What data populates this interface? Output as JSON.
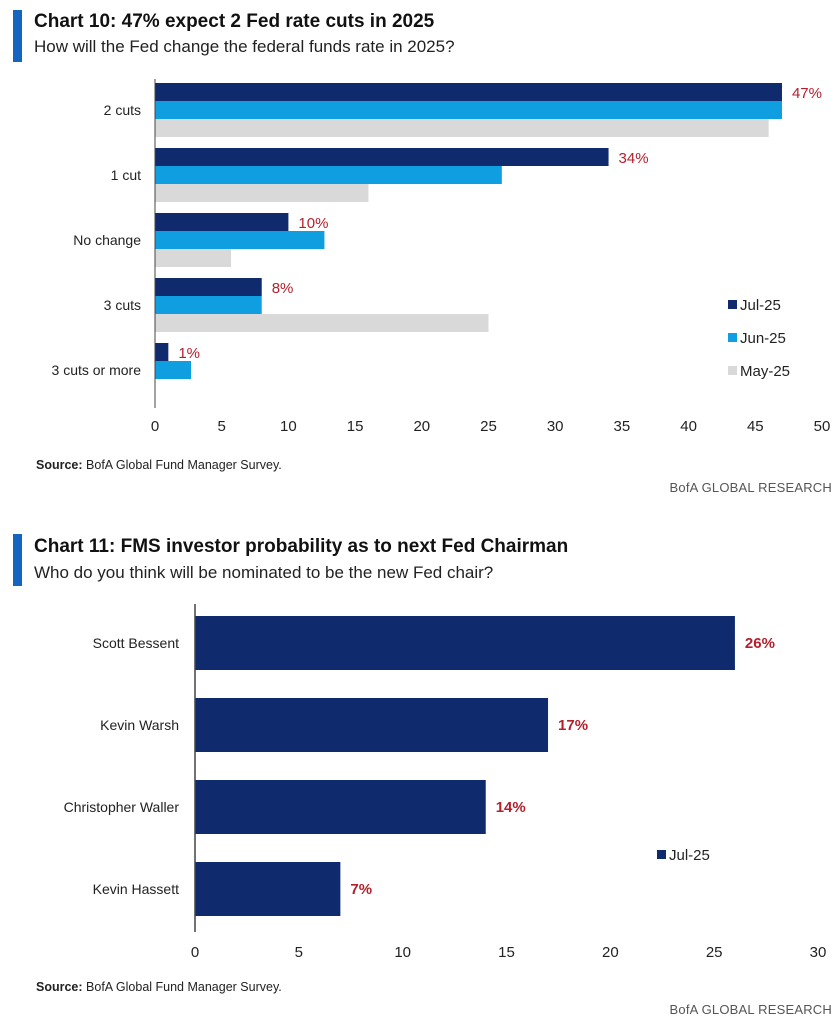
{
  "charts": [
    {
      "title": "Chart 10: 47% expect 2 Fed rate cuts in 2025",
      "subtitle": "How will the Fed change the federal funds rate in 2025?",
      "source_label": "Source:",
      "source_text": "BofA Global Fund Manager Survey.",
      "brand": "BofA GLOBAL RESEARCH"
    },
    {
      "title": "Chart 11: FMS investor probability as to next Fed Chairman",
      "subtitle": "Who do you think will be nominated to be the new Fed chair?",
      "source_label": "Source:",
      "source_text": "BofA Global Fund Manager Survey.",
      "brand": "BofA GLOBAL RESEARCH"
    }
  ],
  "colors": {
    "navy": "#102a6e",
    "blue": "#0f9fe0",
    "gray": "#d9d9d9",
    "label_red": "#b3202c",
    "accent": "#1565c0"
  },
  "chart_data": [
    {
      "type": "bar",
      "orientation": "horizontal",
      "title": "Chart 10: 47% expect 2 Fed rate cuts in 2025",
      "subtitle": "How will the Fed change the federal funds rate in 2025?",
      "categories": [
        "2 cuts",
        "1 cut",
        "No change",
        "3 cuts",
        "3 cuts or more"
      ],
      "series": [
        {
          "name": "Jul-25",
          "color": "#102a6e",
          "values": [
            47,
            34,
            10,
            8,
            1
          ]
        },
        {
          "name": "Jun-25",
          "color": "#0f9fe0",
          "values": [
            47,
            26,
            12.7,
            8,
            2.7
          ]
        },
        {
          "name": "May-25",
          "color": "#d9d9d9",
          "values": [
            46,
            16,
            5.7,
            25,
            0
          ]
        }
      ],
      "data_labels": [
        "47%",
        "34%",
        "10%",
        "8%",
        "1%"
      ],
      "xlim": [
        0,
        50
      ],
      "xticks": [
        0,
        5,
        10,
        15,
        20,
        25,
        30,
        35,
        40,
        45,
        50
      ],
      "legend": "right",
      "grid": false
    },
    {
      "type": "bar",
      "orientation": "horizontal",
      "title": "Chart 11: FMS investor probability as to next Fed Chairman",
      "subtitle": "Who do you think will be nominated to be the new Fed chair?",
      "categories": [
        "Scott Bessent",
        "Kevin Warsh",
        "Christopher Waller",
        "Kevin Hassett"
      ],
      "series": [
        {
          "name": "Jul-25",
          "color": "#102a6e",
          "values": [
            26,
            17,
            14,
            7
          ]
        }
      ],
      "data_labels": [
        "26%",
        "17%",
        "14%",
        "7%"
      ],
      "xlim": [
        0,
        30
      ],
      "xticks": [
        0,
        5,
        10,
        15,
        20,
        25,
        30
      ],
      "legend": "right",
      "grid": false
    }
  ]
}
